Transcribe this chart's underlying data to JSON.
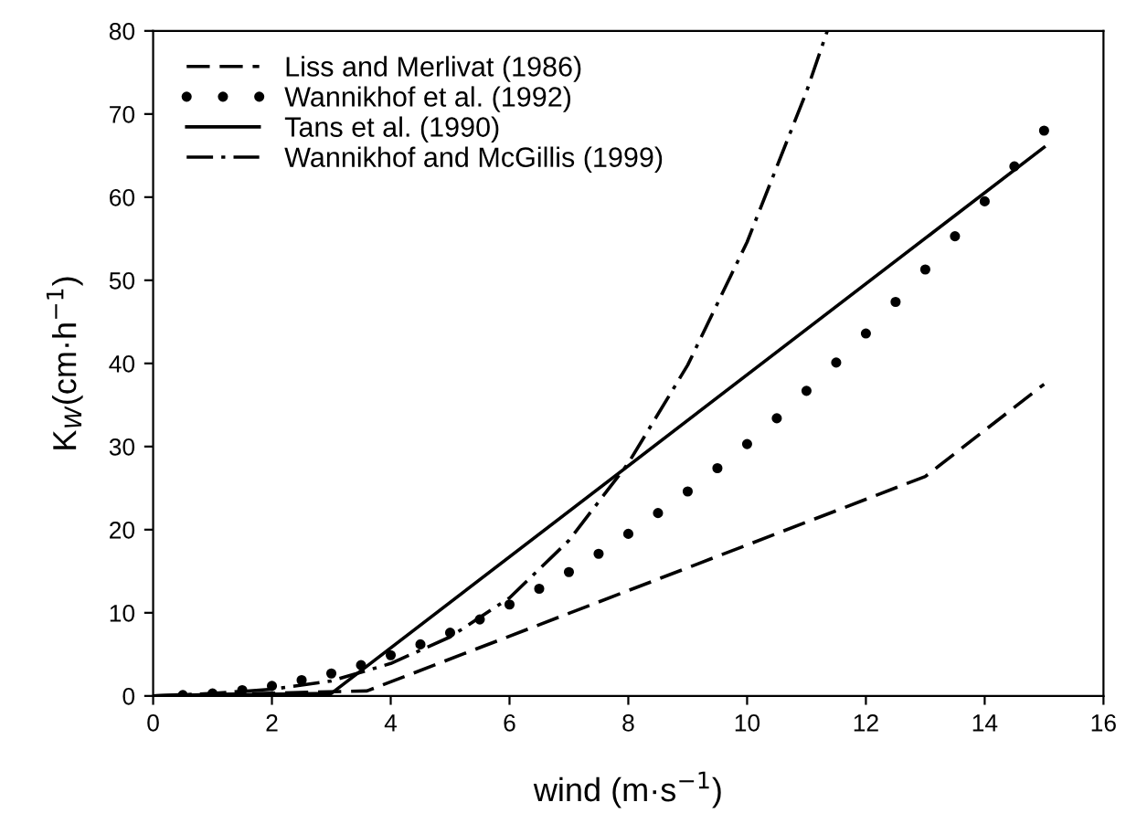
{
  "chart_data": {
    "type": "line",
    "xlabel": "wind (m·s$^{−1}$)",
    "ylabel": "K$_{W}$(cm·h$^{−1}$)",
    "xlim": [
      0,
      16
    ],
    "ylim": [
      0,
      80
    ],
    "xticks": [
      0,
      2,
      4,
      6,
      8,
      10,
      12,
      14,
      16
    ],
    "yticks": [
      0,
      10,
      20,
      30,
      40,
      50,
      60,
      70,
      80
    ],
    "grid": false,
    "legend": "top left",
    "series": [
      {
        "name": "Liss and Merlivat (1986)",
        "color": "#000000",
        "line_style": "dashed",
        "x": [
          0,
          3.6,
          13,
          15
        ],
        "values": [
          0,
          0.6,
          26.4,
          37.5
        ]
      },
      {
        "name": "Wannikhof et al. (1992)",
        "color": "#000000",
        "type": "scatter",
        "marker": "circle",
        "x": [
          0.5,
          1,
          1.5,
          2,
          2.5,
          3,
          3.5,
          4,
          4.5,
          5,
          5.5,
          6,
          6.5,
          7,
          7.5,
          8,
          8.5,
          9,
          9.5,
          10,
          10.5,
          11,
          11.5,
          12,
          12.5,
          13,
          13.5,
          14,
          14.5,
          15
        ],
        "values": [
          0.1,
          0.3,
          0.7,
          1.2,
          1.9,
          2.7,
          3.7,
          4.9,
          6.2,
          7.6,
          9.2,
          11,
          12.9,
          14.9,
          17.1,
          19.5,
          22,
          24.6,
          27.4,
          30.3,
          33.4,
          36.7,
          40.1,
          43.6,
          47.4,
          51.3,
          55.3,
          59.5,
          63.7,
          68
        ]
      },
      {
        "name": "Tans et al. (1990)",
        "color": "#000000",
        "line_style": "solid",
        "x": [
          0,
          3,
          15
        ],
        "values": [
          0,
          0.3,
          66
        ]
      },
      {
        "name": "Wannikhof and McGillis (1999)",
        "color": "#000000",
        "line_style": "dashdot",
        "x": [
          0,
          1,
          2,
          3,
          4,
          5,
          6,
          7,
          8,
          9,
          10,
          11,
          11.35
        ],
        "values": [
          0,
          0.3,
          0.8,
          1.8,
          3.9,
          7.1,
          11.8,
          18.7,
          28,
          39.8,
          54.6,
          72.7,
          80
        ]
      }
    ]
  }
}
